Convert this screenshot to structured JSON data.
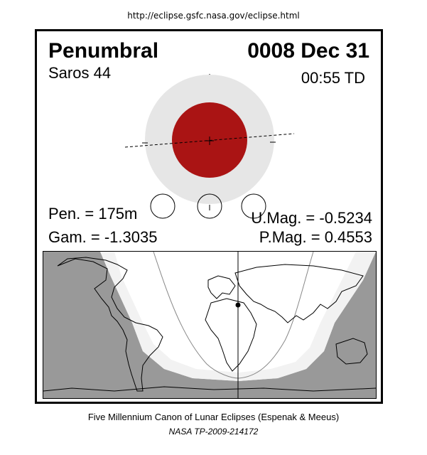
{
  "source_url": "http://eclipse.gsfc.nasa.gov/eclipse.html",
  "eclipse": {
    "type": "Penumbral",
    "date": "0008 Dec 31",
    "saros": "Saros  44",
    "time": "00:55 TD",
    "penumbral_duration": "Pen. = 175m",
    "gamma": "Gam. = -1.3035",
    "umbral_magnitude": "U.Mag. = -0.5234",
    "penumbral_magnitude": "P.Mag. = 0.4553"
  },
  "colors": {
    "moon": "#aa1414",
    "penumbra": "#e6e6e6",
    "night_shade": "#999999",
    "twilight_zone": "#f7f7f7",
    "frame": "#000000"
  },
  "caption": {
    "line1": "Five Millennium Canon of Lunar Eclipses (Espenak & Meeus)",
    "line2": "NASA TP-2009-214172"
  }
}
